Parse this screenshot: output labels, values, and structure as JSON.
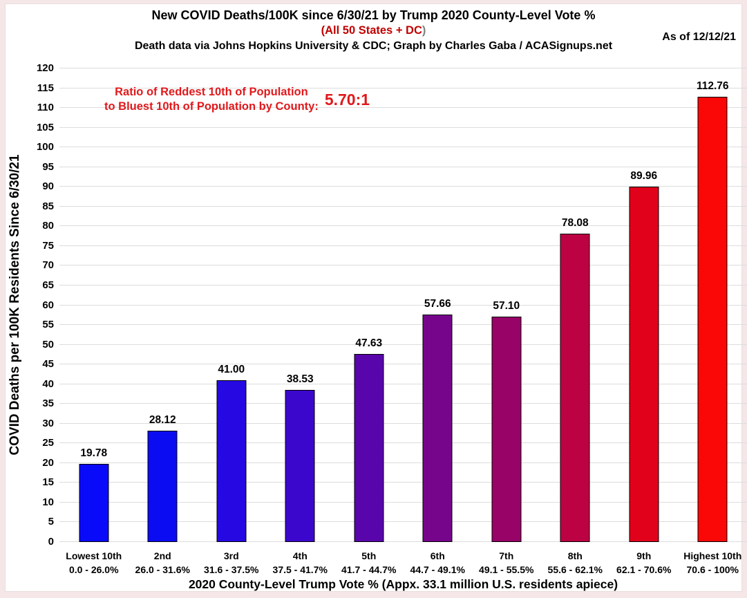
{
  "header": {
    "title": "New COVID Deaths/100K since 6/30/21 by Trump 2020 County-Level Vote %",
    "subtitle_red": "(All 50 States + DC",
    "subtitle_gray": ")",
    "credit": "Death data via Johns Hopkins University & CDC; Graph by Charles Gaba / ACASignups.net",
    "as_of": "As of 12/12/21"
  },
  "annotation": {
    "line1": "Ratio of Reddest 10th of Population",
    "line2": "to Bluest 10th of Population by County:",
    "ratio": "5.70:1",
    "color": "#e0191c"
  },
  "chart_data": {
    "type": "bar",
    "title": "New COVID Deaths/100K since 6/30/21 by Trump 2020 County-Level Vote %",
    "categories": [
      "Lowest 10th",
      "2nd",
      "3rd",
      "4th",
      "5th",
      "6th",
      "7th",
      "8th",
      "9th",
      "Highest 10th"
    ],
    "category_ranges": [
      "0.0 - 26.0%",
      "26.0 - 31.6%",
      "31.6 - 37.5%",
      "37.5 - 41.7%",
      "41.7 - 44.7%",
      "44.7 - 49.1%",
      "49.1 - 55.5%",
      "55.6 - 62.1%",
      "62.1 - 70.6%",
      "70.6 - 100%"
    ],
    "values": [
      19.78,
      28.12,
      41.0,
      38.53,
      47.63,
      57.66,
      57.1,
      78.08,
      89.96,
      112.76
    ],
    "value_labels": [
      "19.78",
      "28.12",
      "41.00",
      "38.53",
      "47.63",
      "57.66",
      "57.10",
      "78.08",
      "89.96",
      "112.76"
    ],
    "bar_colors": [
      "#0a0afa",
      "#0c0cf2",
      "#2608e2",
      "#3c07cd",
      "#5806ab",
      "#77058c",
      "#970367",
      "#bd0243",
      "#e1011b",
      "#fa0808"
    ],
    "xlabel": "2020 County-Level Trump Vote % (Appx. 33.1 million U.S. residents apiece)",
    "ylabel": "COVID Deaths per 100K Residents Since 6/30/21",
    "ylim": [
      0,
      120
    ],
    "ytick_step": 5,
    "grid": "horizontal",
    "legend": "none",
    "colors": {
      "grid": "#dcdcdc",
      "bar_border": "#000000",
      "subtitle_red": "#c00000",
      "subtitle_paren_gray": "#7f7f7f",
      "annotation_red": "#e0191c",
      "background_edge": "#f5e7e8",
      "plot_background": "#ffffff"
    }
  }
}
